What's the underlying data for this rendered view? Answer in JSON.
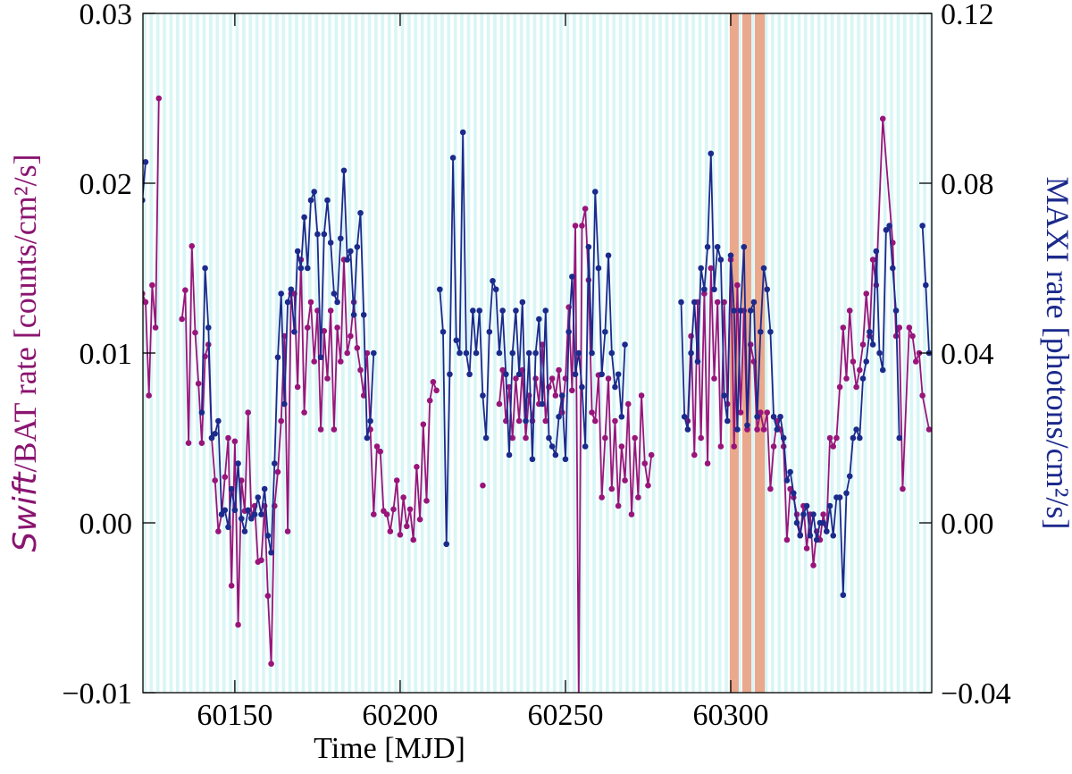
{
  "chart_data": {
    "type": "line",
    "x_label": "Time [MJD]",
    "y_label_parts": [
      "Swift",
      "/BAT rate [counts/cm²/s]"
    ],
    "y2_label": "MAXI rate [photons/cm²/s]",
    "xlim": [
      60122.2,
      60360.8
    ],
    "xticks": [
      60150,
      60200,
      60250,
      60300
    ],
    "ylim": [
      -0.01,
      0.03
    ],
    "yticks": [
      {
        "value": -0.01,
        "label": "−0.01"
      },
      {
        "value": 0,
        "label": "0.00"
      },
      0.01,
      0.02,
      0.03
    ],
    "y2lim": [
      -0.04,
      0.12
    ],
    "y2ticks": [
      {
        "value": -0.04,
        "label": "−0.04"
      },
      {
        "value": 0,
        "label": "0.00"
      },
      0.04,
      0.08,
      0.12
    ],
    "highlight_spans": [
      [
        60299.7,
        60302.4
      ],
      [
        60303.5,
        60306.2
      ],
      [
        60307.3,
        60310.3
      ]
    ],
    "highlight_color": "#eaa88c",
    "series": [
      {
        "name": "Swift/BAT",
        "color": "#99157a",
        "axis": "y",
        "x": [
          60122,
          60123,
          60124,
          60125,
          60126,
          60127,
          60130,
          60134,
          60135,
          60136,
          60137,
          60138,
          60139,
          60140,
          60141,
          60142,
          60143,
          60144,
          60145,
          60146,
          60147,
          60148,
          60149,
          60150,
          60151,
          60152,
          60153,
          60154,
          60155,
          60156,
          60157,
          60158,
          60159,
          60160,
          60161,
          60162,
          60163,
          60164,
          60165,
          60166,
          60167,
          60168,
          60169,
          60170,
          60171,
          60172,
          60173,
          60174,
          60175,
          60176,
          60177,
          60178,
          60179,
          60180,
          60181,
          60182,
          60183,
          60184,
          60185,
          60186,
          60187,
          60188,
          60189,
          60190,
          60191,
          60192,
          60193,
          60194,
          60195,
          60196,
          60197,
          60198,
          60199,
          60200,
          60201,
          60202,
          60203,
          60204,
          60205,
          60206,
          60207,
          60208,
          60209,
          60210,
          60211,
          60212,
          60225,
          60226,
          60230,
          60231,
          60232,
          60233,
          60234,
          60235,
          60236,
          60237,
          60238,
          60239,
          60240,
          60241,
          60242,
          60243,
          60244,
          60245,
          60246,
          60247,
          60248,
          60249,
          60250,
          60251,
          60252,
          60253,
          60254,
          60255,
          60256,
          60257,
          60258,
          60259,
          60260,
          60261,
          60262,
          60263,
          60264,
          60265,
          60266,
          60267,
          60268,
          60269,
          60270,
          60271,
          60272,
          60273,
          60274,
          60275,
          60276,
          60277,
          60287,
          60288,
          60289,
          60290,
          60291,
          60292,
          60293,
          60294,
          60295,
          60296,
          60297,
          60298,
          60299,
          60300,
          60301,
          60302,
          60303,
          60304,
          60305,
          60306,
          60307,
          60308,
          60309,
          60310,
          60311,
          60312,
          60313,
          60314,
          60315,
          60316,
          60317,
          60318,
          60319,
          60320,
          60321,
          60322,
          60323,
          60324,
          60325,
          60326,
          60327,
          60328,
          60329,
          60330,
          60331,
          60332,
          60333,
          60334,
          60335,
          60336,
          60337,
          60338,
          60339,
          60340,
          60341,
          60342,
          60343,
          60344,
          60346,
          60349,
          60350,
          60351,
          60352,
          60354,
          60355,
          60356,
          60357,
          60358,
          60360
        ],
        "values": [
          0.0135,
          0.013,
          0.0075,
          0.014,
          0.0115,
          0.025,
          null,
          0.012,
          0.0137,
          0.0047,
          0.0163,
          0.0112,
          0.0082,
          0.0047,
          0.0098,
          0.0105,
          0.005,
          0.0025,
          -0.0005,
          0.0005,
          0.0027,
          0.005,
          -0.0037,
          0.0048,
          -0.006,
          0.0025,
          0.0007,
          0.0065,
          0.0003,
          0.001,
          -0.0023,
          -0.0022,
          0.001,
          -0.0043,
          -0.0083,
          0.001,
          0.003,
          0.006,
          0.011,
          -0.0005,
          0.0135,
          0.0135,
          0.008,
          0.0155,
          0.0065,
          0.0115,
          0.013,
          0.0095,
          0.0125,
          0.0055,
          0.0113,
          0.0085,
          0.0125,
          0.0055,
          0.0115,
          0.0095,
          0.0155,
          0.01,
          0.011,
          0.013,
          0.0103,
          0.009,
          0.0075,
          0.01,
          0.0055,
          0.0005,
          0.0045,
          0.0042,
          0.0007,
          0.0005,
          -0.0005,
          0.0008,
          0.0025,
          -0.0007,
          0.0015,
          -0.0002,
          0.0008,
          -0.001,
          0.0033,
          0.0002,
          0.0058,
          0.0013,
          0.0072,
          0.0083,
          0.0078,
          null,
          0.0022,
          null,
          0.007,
          0.009,
          0.006,
          0.008,
          0.005,
          0.0085,
          0.006,
          0.009,
          0.005,
          0.0075,
          0.006,
          0.0085,
          0.007,
          0.0105,
          0.006,
          0.008,
          0.0085,
          0.0075,
          0.009,
          0.0065,
          0.0085,
          0.0127,
          0.0078,
          0.0175,
          -0.0105,
          0.0175,
          0.0185,
          0.0143,
          0.0065,
          0.006,
          0.0087,
          0.0015,
          0.005,
          0.0085,
          0.002,
          0.006,
          0.001,
          0.0045,
          0.0025,
          0.007,
          0.0005,
          0.005,
          0.0015,
          0.0075,
          0.0035,
          0.0022,
          0.004,
          null,
          0.006,
          0.011,
          0.004,
          0.013,
          0.005,
          0.0135,
          0.0035,
          0.015,
          0.0085,
          0.013,
          0.0045,
          0.013,
          0.007,
          0.0155,
          0.0045,
          0.014,
          0.0065,
          0.0125,
          0.0055,
          0.0105,
          0.0095,
          0.0055,
          0.0065,
          0.0055,
          0.0065,
          0.002,
          0.0045,
          0.006,
          0.0055,
          0.0045,
          -0.001,
          0.002,
          0.0015,
          0.0005,
          -0.0007,
          0.001,
          -0.0015,
          0.0005,
          -0.0025,
          -0.0005,
          -0.001,
          0.0005,
          -0.0005,
          0.005,
          0.0045,
          0.005,
          0.008,
          0.0115,
          0.0085,
          0.0125,
          0.0095,
          0.008,
          0.009,
          0.0105,
          0.0135,
          0.011,
          0.0155,
          0.014,
          0.0238,
          0.0165,
          0.011,
          0.0115,
          0.002,
          0.0115,
          0.011,
          0.0095,
          0.01,
          0.0075,
          0.0055
        ]
      },
      {
        "name": "MAXI",
        "color": "#1c2a8c",
        "axis": "y2",
        "x": [
          60122,
          60123,
          60124,
          60140,
          60141,
          60142,
          60143,
          60144,
          60145,
          60146,
          60147,
          60148,
          60149,
          60150,
          60151,
          60152,
          60153,
          60154,
          60155,
          60156,
          60157,
          60158,
          60159,
          60160,
          60161,
          60162,
          60163,
          60164,
          60165,
          60166,
          60167,
          60168,
          60169,
          60170,
          60171,
          60172,
          60173,
          60174,
          60175,
          60176,
          60177,
          60178,
          60179,
          60180,
          60181,
          60182,
          60183,
          60184,
          60185,
          60186,
          60187,
          60188,
          60189,
          60190,
          60191,
          60192,
          60193,
          60212,
          60213,
          60214,
          60215,
          60216,
          60217,
          60218,
          60219,
          60220,
          60221,
          60222,
          60223,
          60224,
          60225,
          60226,
          60227,
          60228,
          60229,
          60230,
          60231,
          60232,
          60233,
          60234,
          60235,
          60236,
          60237,
          60238,
          60239,
          60240,
          60241,
          60242,
          60243,
          60244,
          60245,
          60246,
          60247,
          60248,
          60249,
          60250,
          60251,
          60252,
          60253,
          60254,
          60255,
          60256,
          60257,
          60258,
          60259,
          60260,
          60261,
          60262,
          60263,
          60264,
          60265,
          60266,
          60267,
          60268,
          60269,
          60285,
          60286,
          60287,
          60288,
          60289,
          60290,
          60291,
          60292,
          60293,
          60294,
          60295,
          60296,
          60297,
          60298,
          60299,
          60300,
          60301,
          60302,
          60303,
          60304,
          60305,
          60306,
          60307,
          60308,
          60309,
          60310,
          60311,
          60312,
          60313,
          60314,
          60315,
          60316,
          60317,
          60318,
          60319,
          60320,
          60321,
          60322,
          60323,
          60324,
          60325,
          60326,
          60327,
          60328,
          60329,
          60330,
          60331,
          60332,
          60333,
          60334,
          60335,
          60336,
          60337,
          60338,
          60339,
          60340,
          60341,
          60342,
          60343,
          60344,
          60345,
          60346,
          60347,
          60348,
          60349,
          60350,
          60351,
          60352,
          60358,
          60359,
          60360
        ],
        "values": [
          0.076,
          0.085,
          null,
          0.026,
          0.06,
          0.046,
          0.02,
          0.021,
          0.024,
          0.002,
          0.003,
          -0.001,
          0.008,
          0.003,
          0.014,
          0.001,
          -0.002,
          0.003,
          0.001,
          0.002,
          0.006,
          0.002,
          0.008,
          -0.003,
          -0.007,
          0.014,
          0.039,
          0.054,
          0.028,
          0.052,
          0.055,
          0.045,
          0.064,
          0.06,
          0.072,
          0.06,
          0.076,
          0.078,
          0.068,
          0.039,
          0.068,
          0.076,
          0.066,
          0.054,
          0.052,
          0.067,
          0.083,
          0.062,
          0.064,
          0.049,
          0.065,
          0.073,
          0.049,
          0.02,
          0.024,
          0.04,
          null,
          0.055,
          0.045,
          -0.005,
          0.035,
          0.086,
          0.043,
          0.04,
          0.092,
          0.04,
          0.035,
          0.05,
          0.04,
          0.05,
          0.03,
          0.02,
          0.045,
          0.057,
          0.055,
          0.04,
          0.05,
          0.035,
          0.016,
          0.04,
          0.05,
          0.035,
          0.052,
          0.024,
          0.04,
          0.015,
          0.04,
          0.048,
          0.028,
          0.05,
          0.02,
          0.018,
          0.016,
          0.025,
          0.03,
          0.015,
          0.045,
          0.058,
          0.035,
          0.04,
          0.032,
          0.018,
          0.065,
          0.04,
          0.078,
          0.06,
          0.035,
          0.045,
          0.063,
          0.04,
          0.032,
          0.035,
          0.025,
          0.042,
          null,
          0.052,
          0.025,
          0.022,
          0.04,
          0.052,
          0.038,
          0.06,
          0.055,
          0.065,
          0.087,
          0.055,
          0.065,
          0.062,
          0.03,
          0.024,
          0.063,
          0.05,
          0.022,
          0.05,
          0.065,
          0.023,
          0.05,
          0.052,
          0.025,
          0.045,
          0.06,
          0.055,
          0.045,
          0.025,
          0.022,
          0.025,
          0.02,
          0.01,
          0.012,
          0.007,
          0,
          -0.003,
          0.002,
          0.004,
          -0.003,
          0.002,
          -0.004,
          0,
          0,
          -0.002,
          0.004,
          -0.003,
          0.006,
          0.006,
          -0.017,
          0.007,
          0.011,
          0.02,
          0.022,
          0.02,
          0.034,
          0.038,
          0.045,
          0.042,
          0.064,
          0.04,
          0.036,
          0.069,
          0.07,
          0.06,
          0.05,
          0.02,
          null,
          0.07,
          0.056,
          0.04
        ]
      }
    ]
  }
}
